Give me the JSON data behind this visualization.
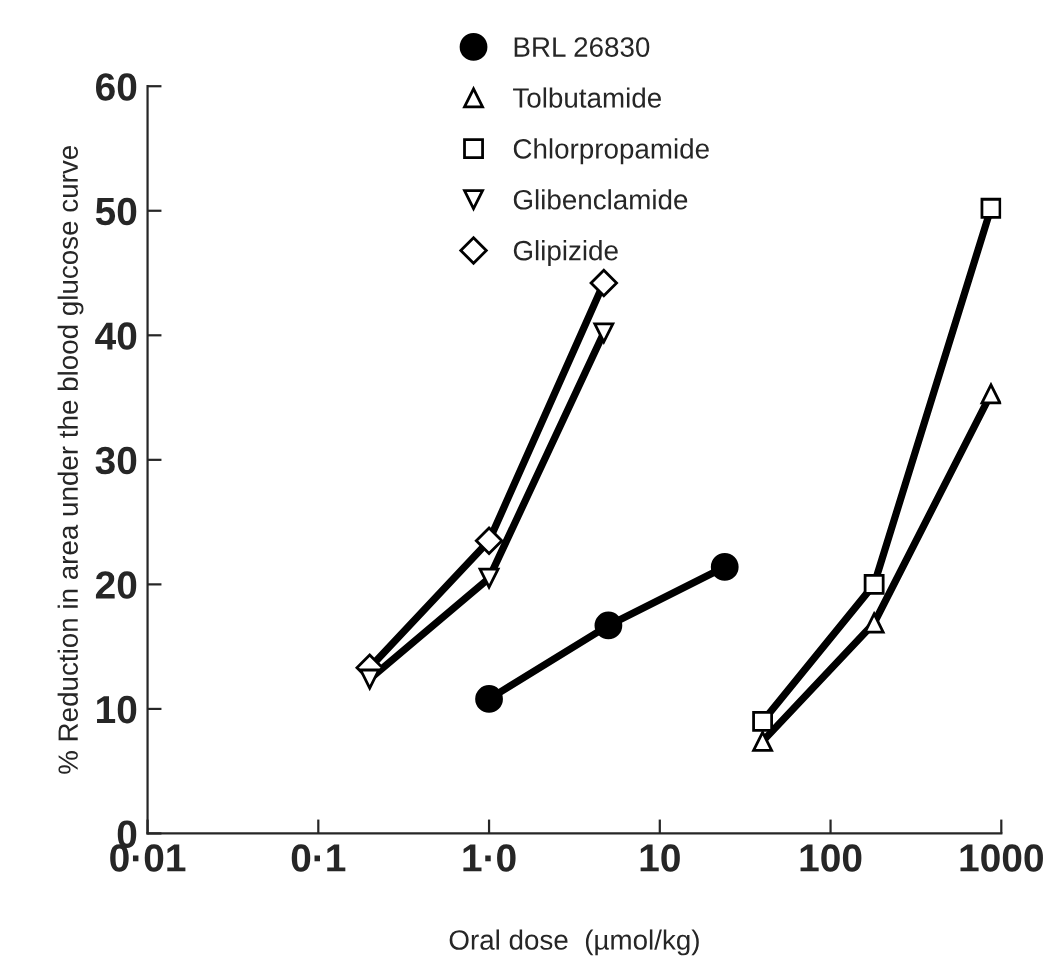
{
  "chart_data": {
    "type": "line",
    "xlabel": "Oral dose  (µmol/kg)",
    "ylabel": "% Reduction in area under the blood glucose curve",
    "log": "x",
    "xlim": [
      0.01,
      1000
    ],
    "ylim": [
      0,
      60
    ],
    "xticks": [
      {
        "value": 0.01,
        "label": "0·01"
      },
      {
        "value": 0.1,
        "label": "0·1"
      },
      {
        "value": 1,
        "label": "1·0"
      },
      10,
      100,
      1000
    ],
    "yticks": [
      0,
      10,
      20,
      30,
      40,
      50,
      60
    ],
    "grid": false,
    "legend": "top left",
    "line_style": "solid",
    "series": [
      {
        "name": "BRL 26830",
        "color": "#000000",
        "marker": "circle",
        "x": [
          1.0,
          5.0,
          24
        ],
        "values": [
          10.8,
          16.7,
          21.4
        ]
      },
      {
        "name": "Tolbutamide",
        "color": "#000000",
        "marker": "triangle",
        "x": [
          40,
          180,
          870
        ],
        "values": [
          7.4,
          16.9,
          35.3
        ]
      },
      {
        "name": "Chlorpropamide",
        "color": "#000000",
        "marker": "square",
        "x": [
          40,
          180,
          870
        ],
        "values": [
          9.0,
          20.0,
          50.2
        ]
      },
      {
        "name": "Glibenclamide",
        "color": "#000000",
        "marker": "triangle_down",
        "x": [
          0.2,
          1.0,
          4.7
        ],
        "values": [
          12.4,
          20.5,
          40.2
        ]
      },
      {
        "name": "Glipizide",
        "color": "#000000",
        "marker": "diamond",
        "x": [
          0.2,
          1.0,
          4.7
        ],
        "values": [
          13.3,
          23.5,
          44.2
        ]
      }
    ]
  }
}
